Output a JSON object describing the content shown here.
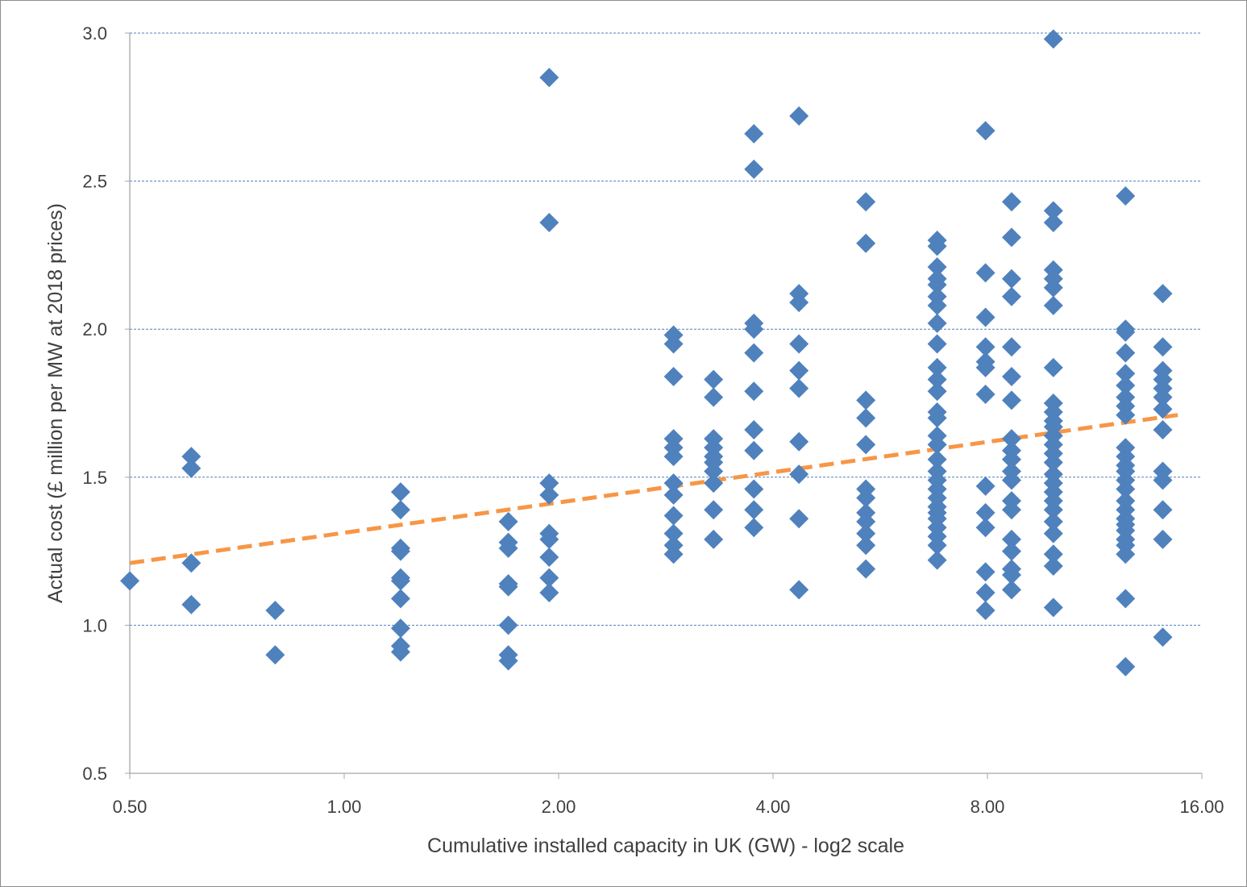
{
  "chart_data": {
    "type": "scatter",
    "title": "",
    "xlabel": "Cumulative installed capacity in UK (GW) - log2 scale",
    "ylabel": "Actual cost  (£ million per MW at 2018 prices)",
    "x_scale": "log2",
    "xlim": [
      0.5,
      16
    ],
    "ylim": [
      0.5,
      3.0
    ],
    "x_ticks": [
      "0.50",
      "1.00",
      "2.00",
      "4.00",
      "8.00",
      "16.00"
    ],
    "x_tick_values": [
      0.5,
      1,
      2,
      4,
      8,
      16
    ],
    "y_ticks": [
      "0.5",
      "1.0",
      "1.5",
      "2.0",
      "2.5",
      "3.0"
    ],
    "y_tick_values": [
      0.5,
      1.0,
      1.5,
      2.0,
      2.5,
      3.0
    ],
    "grid": "horizontal dashed",
    "legend": "none",
    "colors": {
      "points": "#4f81bd",
      "trendline": "#f79646",
      "grid": "#4f81bd",
      "axis": "#a6a6a6",
      "text": "#404040"
    },
    "trendline": {
      "x": [
        0.5,
        14.8
      ],
      "y": [
        1.21,
        1.71
      ],
      "style": "dashed"
    },
    "points": [
      {
        "x": 0.5,
        "y": [
          1.15
        ]
      },
      {
        "x": 0.61,
        "y": [
          1.57,
          1.53,
          1.21,
          1.07
        ]
      },
      {
        "x": 0.8,
        "y": [
          1.05,
          0.9
        ]
      },
      {
        "x": 1.2,
        "y": [
          1.45,
          1.39,
          1.26,
          1.25,
          1.16,
          1.15,
          1.09,
          0.99,
          0.93,
          0.91
        ]
      },
      {
        "x": 1.7,
        "y": [
          1.35,
          1.28,
          1.26,
          1.14,
          1.13,
          1.0,
          0.9,
          0.88
        ]
      },
      {
        "x": 1.94,
        "y": [
          2.85,
          2.36,
          1.48,
          1.44,
          1.31,
          1.29,
          1.23,
          1.16,
          1.11
        ]
      },
      {
        "x": 2.9,
        "y": [
          1.98,
          1.95,
          1.84,
          1.63,
          1.6,
          1.57,
          1.48,
          1.44,
          1.37,
          1.31,
          1.27,
          1.24
        ]
      },
      {
        "x": 3.3,
        "y": [
          1.83,
          1.77,
          1.63,
          1.6,
          1.57,
          1.55,
          1.52,
          1.48,
          1.39,
          1.29
        ]
      },
      {
        "x": 3.76,
        "y": [
          2.66,
          2.54,
          2.02,
          2.0,
          1.92,
          1.79,
          1.66,
          1.59,
          1.46,
          1.39,
          1.33
        ]
      },
      {
        "x": 4.35,
        "y": [
          2.72,
          2.12,
          2.09,
          1.95,
          1.86,
          1.8,
          1.62,
          1.51,
          1.36,
          1.12
        ]
      },
      {
        "x": 5.4,
        "y": [
          2.43,
          2.29,
          1.76,
          1.7,
          1.61,
          1.46,
          1.43,
          1.38,
          1.35,
          1.31,
          1.27,
          1.19
        ]
      },
      {
        "x": 6.8,
        "y": [
          2.3,
          2.28,
          2.21,
          2.17,
          2.15,
          2.11,
          2.08,
          2.02,
          1.95,
          1.87,
          1.83,
          1.79,
          1.72,
          1.7,
          1.64,
          1.61,
          1.56,
          1.52,
          1.49,
          1.46,
          1.43,
          1.4,
          1.38,
          1.36,
          1.33,
          1.3,
          1.27,
          1.22
        ]
      },
      {
        "x": 7.95,
        "y": [
          2.67,
          2.19,
          2.04,
          1.94,
          1.89,
          1.87,
          1.78,
          1.47,
          1.38,
          1.33,
          1.18,
          1.11,
          1.05
        ]
      },
      {
        "x": 8.65,
        "y": [
          2.43,
          2.31,
          2.17,
          2.11,
          1.94,
          1.84,
          1.76,
          1.63,
          1.59,
          1.56,
          1.52,
          1.49,
          1.42,
          1.39,
          1.29,
          1.25,
          1.19,
          1.17,
          1.12
        ]
      },
      {
        "x": 9.9,
        "y": [
          2.98,
          2.4,
          2.36,
          2.2,
          2.17,
          2.14,
          2.08,
          1.87,
          1.75,
          1.72,
          1.69,
          1.67,
          1.64,
          1.61,
          1.58,
          1.55,
          1.51,
          1.48,
          1.45,
          1.42,
          1.39,
          1.35,
          1.31,
          1.24,
          1.2,
          1.06
        ]
      },
      {
        "x": 12.5,
        "y": [
          2.45,
          2.0,
          1.99,
          1.92,
          1.85,
          1.81,
          1.77,
          1.74,
          1.71,
          1.6,
          1.57,
          1.54,
          1.52,
          1.49,
          1.46,
          1.42,
          1.39,
          1.36,
          1.34,
          1.32,
          1.29,
          1.27,
          1.24,
          1.09,
          0.86
        ]
      },
      {
        "x": 14.1,
        "y": [
          2.12,
          1.94,
          1.86,
          1.83,
          1.8,
          1.77,
          1.73,
          1.66,
          1.52,
          1.49,
          1.39,
          1.29,
          0.96
        ]
      }
    ]
  }
}
